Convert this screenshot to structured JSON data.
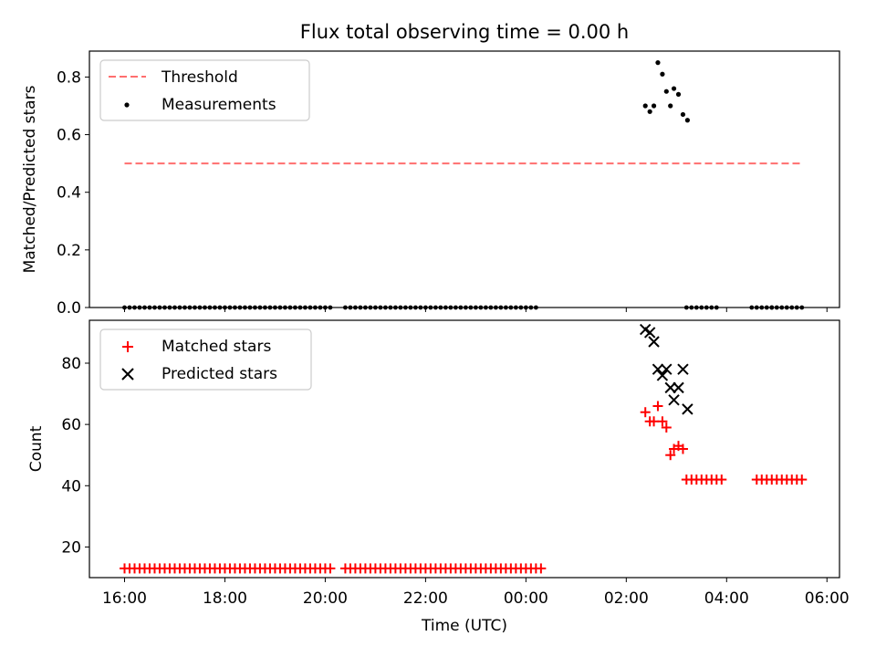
{
  "chart_data": {
    "title": "Flux total observing time = 0.00 h",
    "xlabel": "Time (UTC)",
    "x_units": "hours since 16:00 UTC (reference day)",
    "x_ticks": [
      {
        "hours": 0,
        "label": "16:00"
      },
      {
        "hours": 2,
        "label": "18:00"
      },
      {
        "hours": 4,
        "label": "20:00"
      },
      {
        "hours": 6,
        "label": "22:00"
      },
      {
        "hours": 8,
        "label": "00:00"
      },
      {
        "hours": 10,
        "label": "02:00"
      },
      {
        "hours": 12,
        "label": "04:00"
      },
      {
        "hours": 14,
        "label": "06:00"
      }
    ],
    "xlim": [
      -0.7,
      14.25
    ],
    "panels": [
      {
        "id": "ratio",
        "type": "scatter",
        "ylabel": "Matched/Predicted stars",
        "ylim": [
          0.0,
          0.89
        ],
        "y_ticks": [
          0.0,
          0.2,
          0.4,
          0.6,
          0.8
        ],
        "y_tick_labels": [
          "0.0",
          "0.2",
          "0.4",
          "0.6",
          "0.8"
        ],
        "legend": {
          "position": "top-left",
          "entries": [
            "Threshold",
            "Measurements"
          ]
        },
        "threshold": {
          "name": "Threshold",
          "value": 0.5,
          "x_range": [
            0,
            13.5
          ],
          "color": "#ff6f6f"
        },
        "measurements": {
          "name": "Measurements",
          "color": "#000000",
          "zero_runs": [
            {
              "from": 0.0,
              "to": 4.1,
              "step": 0.1
            },
            {
              "from": 4.4,
              "to": 8.2,
              "step": 0.1
            },
            {
              "from": 11.2,
              "to": 11.8,
              "step": 0.1
            },
            {
              "from": 12.5,
              "to": 12.9,
              "step": 0.1
            },
            {
              "from": 12.9,
              "to": 13.5,
              "step": 0.1
            }
          ],
          "points": [
            {
              "x": 10.38,
              "y": 0.7
            },
            {
              "x": 10.47,
              "y": 0.68
            },
            {
              "x": 10.55,
              "y": 0.7
            },
            {
              "x": 10.63,
              "y": 0.85
            },
            {
              "x": 10.72,
              "y": 0.81
            },
            {
              "x": 10.8,
              "y": 0.75
            },
            {
              "x": 10.88,
              "y": 0.7
            },
            {
              "x": 10.95,
              "y": 0.76
            },
            {
              "x": 11.04,
              "y": 0.74
            },
            {
              "x": 11.13,
              "y": 0.67
            },
            {
              "x": 11.22,
              "y": 0.65
            }
          ]
        }
      },
      {
        "id": "count",
        "type": "scatter",
        "ylabel": "Count",
        "ylim": [
          10,
          94
        ],
        "y_ticks": [
          20,
          40,
          60,
          80
        ],
        "y_tick_labels": [
          "20",
          "40",
          "60",
          "80"
        ],
        "legend": {
          "position": "top-left",
          "entries": [
            "Matched stars",
            "Predicted stars"
          ]
        },
        "matched": {
          "name": "Matched stars",
          "color": "#ff0000",
          "runs": [
            {
              "from": 0.0,
              "to": 4.1,
              "step": 0.1,
              "y": 13
            },
            {
              "from": 4.4,
              "to": 8.3,
              "step": 0.1,
              "y": 13
            },
            {
              "from": 11.2,
              "to": 11.9,
              "step": 0.1,
              "y": 42
            },
            {
              "from": 12.6,
              "to": 13.5,
              "step": 0.1,
              "y": 42
            }
          ],
          "points": [
            {
              "x": 10.38,
              "y": 64
            },
            {
              "x": 10.47,
              "y": 61
            },
            {
              "x": 10.55,
              "y": 61
            },
            {
              "x": 10.63,
              "y": 66
            },
            {
              "x": 10.72,
              "y": 61
            },
            {
              "x": 10.8,
              "y": 59
            },
            {
              "x": 10.88,
              "y": 50
            },
            {
              "x": 10.95,
              "y": 52
            },
            {
              "x": 11.04,
              "y": 53
            },
            {
              "x": 11.13,
              "y": 52
            }
          ]
        },
        "predicted": {
          "name": "Predicted stars",
          "color": "#000000",
          "points": [
            {
              "x": 10.38,
              "y": 91
            },
            {
              "x": 10.47,
              "y": 90
            },
            {
              "x": 10.55,
              "y": 87
            },
            {
              "x": 10.63,
              "y": 78
            },
            {
              "x": 10.72,
              "y": 76
            },
            {
              "x": 10.8,
              "y": 78
            },
            {
              "x": 10.88,
              "y": 72
            },
            {
              "x": 10.95,
              "y": 68
            },
            {
              "x": 11.04,
              "y": 72
            },
            {
              "x": 11.13,
              "y": 78
            },
            {
              "x": 11.22,
              "y": 65
            }
          ]
        }
      }
    ]
  }
}
